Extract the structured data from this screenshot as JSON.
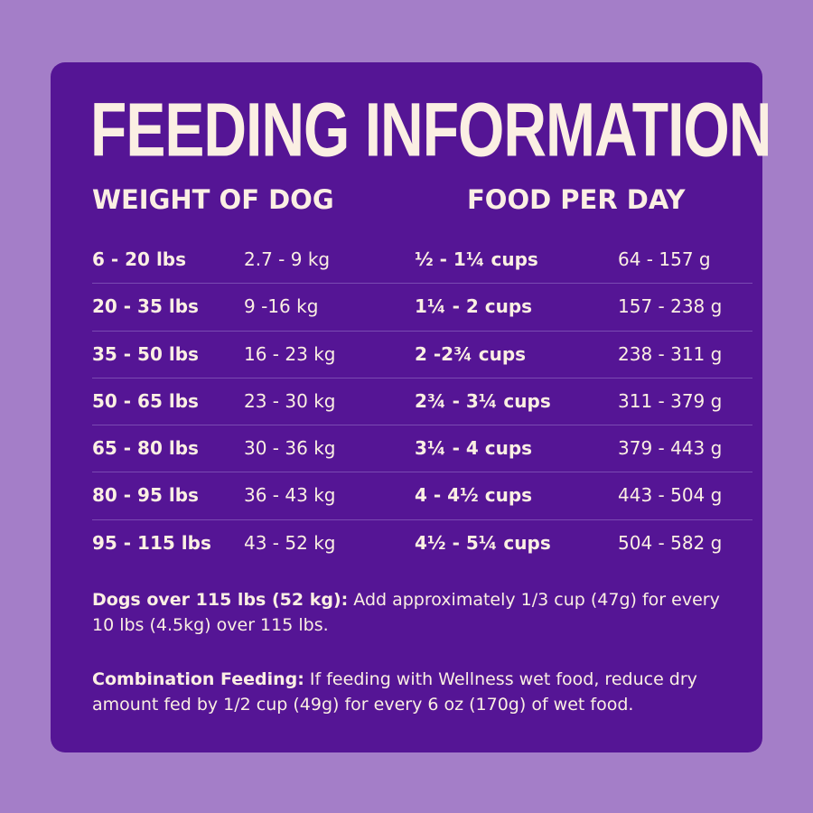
{
  "title": "FEEDING INFORMATION",
  "headers": {
    "weight": "WEIGHT OF DOG",
    "food": "FOOD PER DAY"
  },
  "rows": [
    {
      "lbs": "6 - 20 lbs",
      "kg": "2.7 - 9 kg",
      "cups": "½ - 1¼ cups",
      "grams": "64 - 157 g"
    },
    {
      "lbs": "20 - 35 lbs",
      "kg": "9 -16 kg",
      "cups": "1¼ - 2 cups",
      "grams": "157 - 238 g"
    },
    {
      "lbs": "35 - 50 lbs",
      "kg": "16 - 23 kg",
      "cups": "2 -2¾ cups",
      "grams": "238 - 311 g"
    },
    {
      "lbs": "50 - 65 lbs",
      "kg": "23 - 30 kg",
      "cups": "2¾ - 3¼ cups",
      "grams": "311 - 379 g"
    },
    {
      "lbs": "65 - 80 lbs",
      "kg": "30 - 36 kg",
      "cups": "3¼ - 4 cups",
      "grams": "379 - 443 g"
    },
    {
      "lbs": "80 - 95 lbs",
      "kg": "36 - 43 kg",
      "cups": "4 - 4½ cups",
      "grams": "443 - 504 g"
    },
    {
      "lbs": "95 - 115 lbs",
      "kg": "43 - 52 kg",
      "cups": "4½ - 5¼ cups",
      "grams": "504 - 582 g"
    }
  ],
  "notes": {
    "over_label": "Dogs over 115 lbs (52 kg):",
    "over_text": " Add approximately 1/3 cup (47g) for every 10 lbs (4.5kg) over 115 lbs.",
    "combo_label": "Combination Feeding:",
    "combo_text": " If feeding with Wellness wet food, reduce dry amount fed by 1/2 cup (49g) for every 6 oz (170g) of wet food."
  },
  "colors": {
    "background": "#a47ec8",
    "card": "#551595",
    "text": "#fbefe3",
    "divider": "#7a4ab2"
  }
}
